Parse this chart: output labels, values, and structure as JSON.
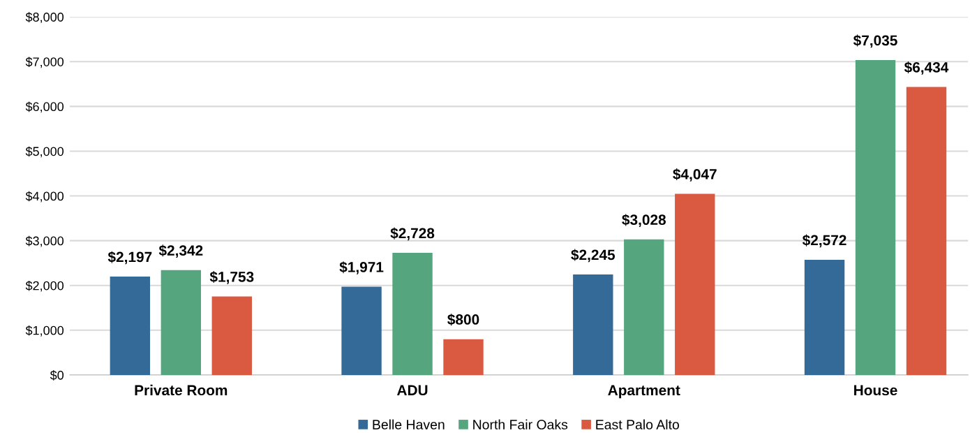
{
  "chart_data": {
    "type": "bar",
    "categories": [
      "Private Room",
      "ADU",
      "Apartment",
      "House"
    ],
    "series": [
      {
        "name": "Belle Haven",
        "color": "#346a98",
        "values": [
          2197,
          1971,
          2245,
          2572
        ],
        "value_labels": [
          "$2,197",
          "$1,971",
          "$2,245",
          "$2,572"
        ]
      },
      {
        "name": "North Fair Oaks",
        "color": "#55a67e",
        "values": [
          2342,
          2728,
          3028,
          7035
        ],
        "value_labels": [
          "$2,342",
          "$2,728",
          "$3,028",
          "$7,035"
        ]
      },
      {
        "name": "East Palo Alto",
        "color": "#da5a41",
        "values": [
          1753,
          800,
          4047,
          6434
        ],
        "value_labels": [
          "$1,753",
          "$800",
          "$4,047",
          "$6,434"
        ]
      }
    ],
    "ylim": [
      0,
      8000
    ],
    "yticks": [
      {
        "value": 0,
        "label": "$0"
      },
      {
        "value": 1000,
        "label": "$1,000"
      },
      {
        "value": 2000,
        "label": "$2,000"
      },
      {
        "value": 3000,
        "label": "$3,000"
      },
      {
        "value": 4000,
        "label": "$4,000"
      },
      {
        "value": 5000,
        "label": "$5,000"
      },
      {
        "value": 6000,
        "label": "$6,000"
      },
      {
        "value": 7000,
        "label": "$7,000"
      },
      {
        "value": 8000,
        "label": "$8,000"
      }
    ],
    "grid": "y",
    "legend": "bottom"
  }
}
